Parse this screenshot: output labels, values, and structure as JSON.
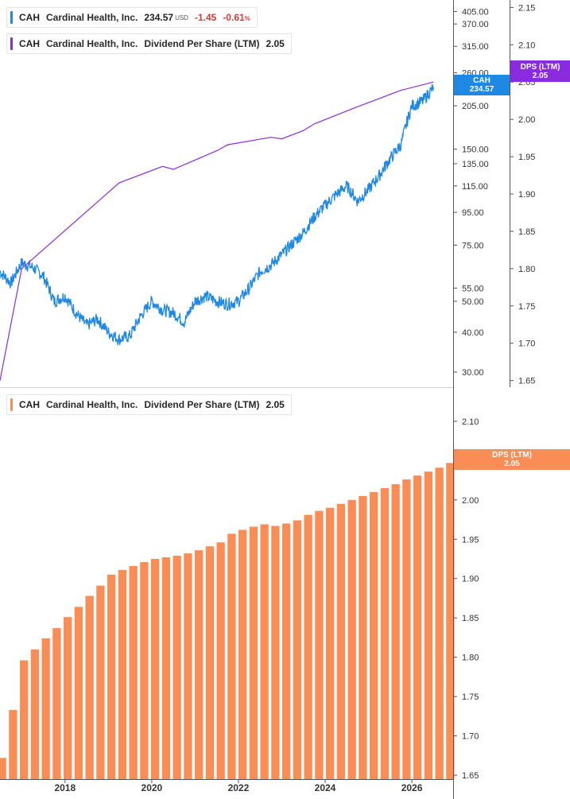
{
  "legends": {
    "price": {
      "ticker": "CAH",
      "name": "Cardinal Health, Inc.",
      "value": "234.57",
      "currency": "USD",
      "change": "-1.45",
      "change_pct": "-0.61",
      "pct_sign": "%"
    },
    "dps_top": {
      "ticker": "CAH",
      "name": "Cardinal Health, Inc.",
      "metric": "Dividend Per Share (LTM)",
      "value": "2.05"
    },
    "dps_bottom": {
      "ticker": "CAH",
      "name": "Cardinal Health, Inc.",
      "metric": "Dividend Per Share (LTM)",
      "value": "2.05"
    }
  },
  "badges": {
    "price": {
      "label": "CAH",
      "value": "234.57"
    },
    "dps_top": {
      "label": "DPS (LTM)",
      "value": "2.05"
    },
    "dps_bottom": {
      "label": "DPS (LTM)",
      "value": "2.05"
    }
  },
  "colors": {
    "price": "#1e88e5",
    "dps_line": "#8a2be2",
    "dps_bar": "#fa8c55",
    "negative": "#d23c3c"
  },
  "chart_data": [
    {
      "type": "line",
      "scale": "log",
      "series": [
        {
          "name": "CAH",
          "x": [
            "2016-07",
            "2016-10",
            "2017-01",
            "2017-04",
            "2017-07",
            "2017-10",
            "2018-01",
            "2018-04",
            "2018-07",
            "2018-10",
            "2019-01",
            "2019-04",
            "2019-07",
            "2019-10",
            "2020-01",
            "2020-04",
            "2020-07",
            "2020-10",
            "2021-01",
            "2021-04",
            "2021-07",
            "2021-10",
            "2022-01",
            "2022-04",
            "2022-07",
            "2022-10",
            "2023-01",
            "2023-04",
            "2023-07",
            "2023-10",
            "2024-01",
            "2024-04",
            "2024-07",
            "2024-10",
            "2025-01",
            "2025-04",
            "2025-07",
            "2025-10",
            "2026-01",
            "2026-04",
            "2026-07"
          ],
          "y": [
            62,
            57,
            66,
            64,
            60,
            50,
            52,
            46,
            42,
            44,
            40,
            38,
            39,
            45,
            50,
            47,
            46,
            43,
            50,
            52,
            50,
            49,
            50,
            55,
            62,
            65,
            70,
            76,
            82,
            92,
            100,
            108,
            115,
            103,
            112,
            124,
            140,
            155,
            205,
            212,
            234.57
          ]
        }
      ],
      "y_ticks": [
        "405.00",
        "370.00",
        "315.00",
        "260.00",
        "205.00",
        "150.00",
        "135.00",
        "115.00",
        "95.00",
        "75.00",
        "55.00",
        "50.00",
        "40.00",
        "30.00"
      ],
      "ylim": [
        28,
        430
      ]
    },
    {
      "type": "line",
      "series": [
        {
          "name": "Dividend Per Share (LTM)",
          "x": [
            "2016-07",
            "2017-01",
            "2019-04",
            "2020-04",
            "2020-07",
            "2021-07",
            "2021-10",
            "2022-10",
            "2023-01",
            "2023-07",
            "2023-10",
            "2024-10",
            "2025-10",
            "2026-07"
          ],
          "y": [
            1.65,
            1.8,
            1.915,
            1.937,
            1.933,
            1.958,
            1.966,
            1.976,
            1.974,
            1.985,
            1.994,
            2.017,
            2.039,
            2.05
          ]
        }
      ],
      "y_ticks": [
        "2.15",
        "2.10",
        "2.05",
        "2.00",
        "1.95",
        "1.90",
        "1.85",
        "1.80",
        "1.75",
        "1.70",
        "1.65"
      ],
      "ylim": [
        1.64,
        2.16
      ]
    },
    {
      "type": "bar",
      "series": [
        {
          "name": "Dividend Per Share (LTM)",
          "values": [
            1.672,
            1.733,
            1.796,
            1.81,
            1.824,
            1.837,
            1.851,
            1.864,
            1.878,
            1.891,
            1.905,
            1.911,
            1.916,
            1.921,
            1.925,
            1.927,
            1.929,
            1.932,
            1.936,
            1.941,
            1.946,
            1.957,
            1.962,
            1.966,
            1.969,
            1.967,
            1.97,
            1.974,
            1.981,
            1.986,
            1.99,
            1.995,
            2.0,
            2.005,
            2.01,
            2.015,
            2.02,
            2.026,
            2.031,
            2.036,
            2.041,
            2.047
          ]
        }
      ],
      "x_ticks": [
        "2018",
        "2020",
        "2022",
        "2024",
        "2026"
      ],
      "y_ticks": [
        "2.10",
        "2.00",
        "1.95",
        "1.90",
        "1.85",
        "1.80",
        "1.75",
        "1.70",
        "1.65"
      ],
      "ylim": [
        1.645,
        2.11
      ]
    }
  ]
}
